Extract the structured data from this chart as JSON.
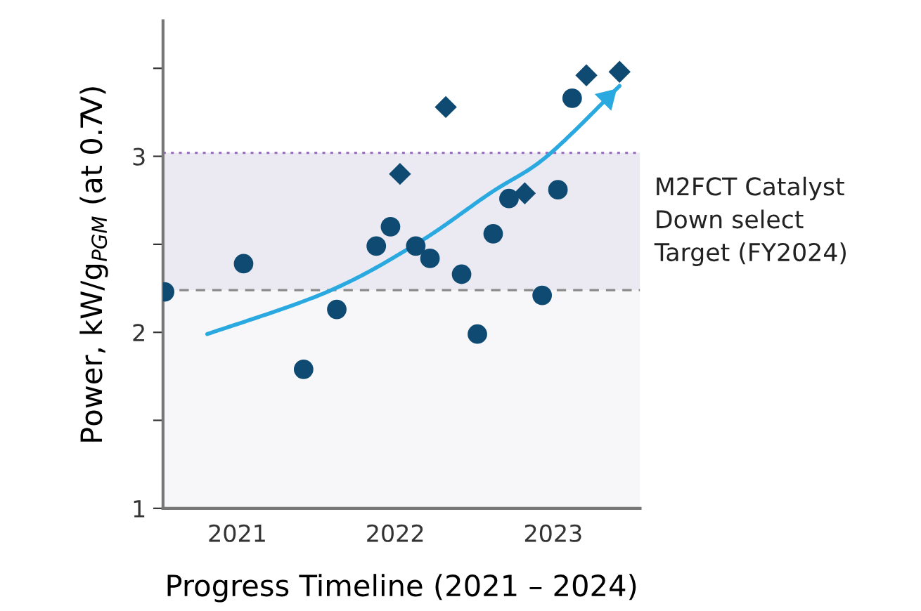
{
  "chart_data": {
    "type": "scatter",
    "xlabel": "Progress Timeline (2021 – 2024)",
    "ylabel": "Power, kW/g$_{PGM}$ (at 0.7V)",
    "xlim": [
      2020.53,
      2023.55
    ],
    "ylim": [
      1,
      3.77
    ],
    "xticks": [
      2021,
      2022,
      2023
    ],
    "yticks": [
      1,
      {
        "value": 1.5,
        "label": null
      },
      2,
      {
        "value": 2.5,
        "label": null
      },
      3,
      {
        "value": 3.5,
        "label": null
      }
    ],
    "grid": false,
    "legend": false,
    "series": [
      {
        "marker": "circle",
        "color": "#0f4a72",
        "x": [
          2020.54,
          2021.04,
          2021.42,
          2021.63,
          2021.88,
          2021.97,
          2022.13,
          2022.22,
          2022.42,
          2022.52,
          2022.62,
          2022.72,
          2022.93,
          2023.03,
          2023.12
        ],
        "values": [
          2.23,
          2.39,
          1.79,
          2.13,
          2.49,
          2.6,
          2.49,
          2.42,
          2.33,
          1.99,
          2.56,
          2.76,
          2.21,
          2.81,
          3.33
        ]
      },
      {
        "marker": "diamond",
        "color": "#0f4a72",
        "x": [
          2022.03,
          2022.32,
          2022.82,
          2023.21,
          2023.42
        ],
        "values": [
          2.9,
          3.28,
          2.79,
          3.46,
          3.48
        ]
      },
      {
        "type": "line",
        "marker": "none",
        "line_style": "solid",
        "color": "#29a9e0",
        "x": [
          2020.81,
          2021.57,
          2022.13,
          2022.6,
          2022.96,
          2023.42
        ],
        "values": [
          1.99,
          2.23,
          2.5,
          2.79,
          3.0,
          3.4
        ]
      }
    ],
    "bands": [
      {
        "axis": "y",
        "from": 1,
        "to": 2.24,
        "color": "#f7f7f9"
      },
      {
        "axis": "y",
        "from": 2.24,
        "to": 3.02,
        "color": "#ebeaf2",
        "label": "M2FCT Catalyst\nDown select\nTarget (FY2024)"
      }
    ],
    "ref_lines": [
      {
        "axis": "y",
        "value": 2.24,
        "color": "#8a8a8a",
        "line_style": "dashed"
      },
      {
        "axis": "y",
        "value": 3.02,
        "color": "#9a6fc0",
        "line_style": "dotted"
      }
    ]
  }
}
